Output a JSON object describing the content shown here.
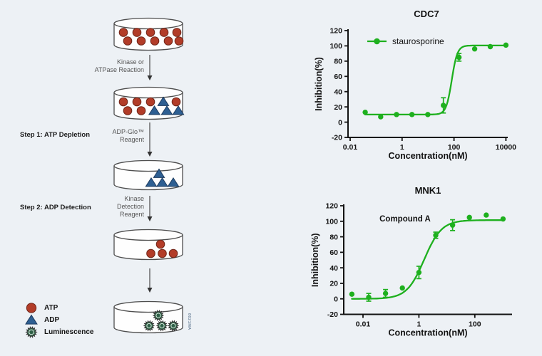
{
  "background": "#edf1f5",
  "diagram": {
    "step1_label": "Step 1: ATP Depletion",
    "step2_label": "Step 2: ADP Detection",
    "arrow_labels": [
      [
        "Kinase or",
        "ATPase Reaction"
      ],
      [
        "ADP-Glo™",
        "Reagent"
      ],
      [
        "Kinase",
        "Detection",
        "Reagent"
      ]
    ],
    "legend": [
      {
        "symbol": "atp",
        "label": "ATP"
      },
      {
        "symbol": "adp",
        "label": "ADP"
      },
      {
        "symbol": "luminescence",
        "label": "Luminescence"
      }
    ],
    "figure_id": "8021MA",
    "colors": {
      "atp_fill": "#b23c28",
      "atp_stroke": "#6f2518",
      "adp_fill": "#2e5f92",
      "adp_stroke": "#1c3a5e",
      "lum_fill": "#3d7a58",
      "lum_stroke": "#2e2e2e",
      "dish_fill": "#fefefe",
      "dish_stroke": "#4d4d4d",
      "arrow": "#4a4a4a"
    },
    "dishes": [
      {
        "layout": "rows",
        "rows": [
          [
            "atp",
            "atp",
            "atp",
            "atp",
            "atp"
          ],
          [
            "atp",
            "atp",
            "atp",
            "atp",
            "atp"
          ]
        ]
      },
      {
        "layout": "rows",
        "rows": [
          [
            "atp",
            "atp",
            "atp",
            "adp",
            "atp"
          ],
          [
            "atp",
            "atp",
            "adp",
            "adp",
            "adp"
          ]
        ]
      },
      {
        "layout": "cluster",
        "items": [
          "adp",
          "adp",
          "adp",
          "adp"
        ]
      },
      {
        "layout": "cluster",
        "items": [
          "atp",
          "atp",
          "atp",
          "atp"
        ]
      },
      {
        "layout": "cluster",
        "items": [
          "luminescence",
          "luminescence",
          "luminescence",
          "luminescence"
        ]
      }
    ]
  },
  "chart_data": [
    {
      "type": "scatter",
      "title": "CDC7",
      "legend": "staurosporine",
      "annotation": null,
      "xlabel": "Concentration(nM)",
      "ylabel": "Inhibition(%)",
      "xscale": "log",
      "xlim": [
        0.01,
        10000
      ],
      "ylim": [
        -20,
        120
      ],
      "xticks": [
        0.01,
        1,
        100,
        10000
      ],
      "yticks": [
        -20,
        0,
        20,
        40,
        60,
        80,
        100,
        120
      ],
      "grid": false,
      "color": "#1eb01e",
      "points": [
        {
          "x": 0.038,
          "y": 13
        },
        {
          "x": 0.15,
          "y": 7
        },
        {
          "x": 0.61,
          "y": 10
        },
        {
          "x": 2.4,
          "y": 10
        },
        {
          "x": 9.8,
          "y": 10
        },
        {
          "x": 39,
          "y": 22,
          "err": 10
        },
        {
          "x": 156,
          "y": 85,
          "err": 5
        },
        {
          "x": 625,
          "y": 96
        },
        {
          "x": 2500,
          "y": 99
        },
        {
          "x": 10000,
          "y": 101
        }
      ],
      "fit": {
        "model": "4PL",
        "bottom": 10,
        "top": 100.5,
        "ec50": 82,
        "hill": 4
      }
    },
    {
      "type": "scatter",
      "title": "MNK1",
      "legend": null,
      "annotation": "Compound A",
      "xlabel": "Concentration(nM)",
      "ylabel": "Inhibition(%)",
      "xscale": "log",
      "xlim": [
        0.002,
        2000
      ],
      "ylim": [
        -20,
        120
      ],
      "xticks": [
        0.01,
        1,
        100
      ],
      "yticks": [
        -20,
        0,
        20,
        40,
        60,
        80,
        100,
        120
      ],
      "grid": false,
      "color": "#1eb01e",
      "points": [
        {
          "x": 0.004,
          "y": 6
        },
        {
          "x": 0.016,
          "y": 2,
          "err": 5
        },
        {
          "x": 0.064,
          "y": 7,
          "err": 5
        },
        {
          "x": 0.256,
          "y": 14
        },
        {
          "x": 1,
          "y": 34,
          "err": 8
        },
        {
          "x": 4,
          "y": 82,
          "err": 4
        },
        {
          "x": 16,
          "y": 95,
          "err": 7
        },
        {
          "x": 64,
          "y": 105
        },
        {
          "x": 256,
          "y": 108
        },
        {
          "x": 1024,
          "y": 103
        }
      ],
      "fit": {
        "model": "4PL",
        "bottom": 0,
        "top": 101.5,
        "ec50": 1.55,
        "hill": 1.4
      }
    }
  ]
}
